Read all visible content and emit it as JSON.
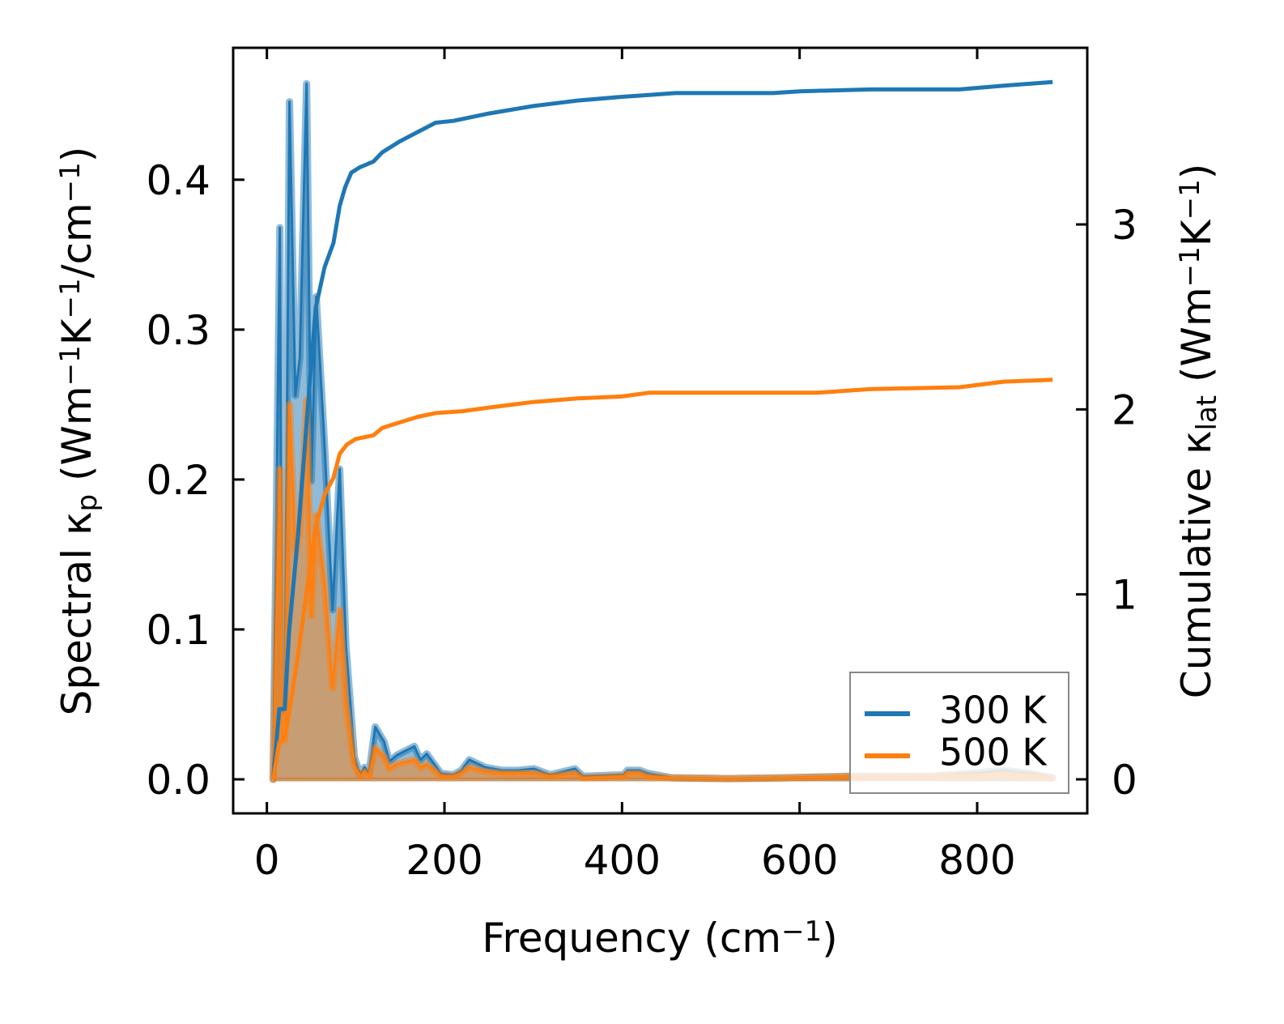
{
  "chart_data": {
    "type": "line",
    "title": "",
    "xlabel": [
      {
        "t": "Frequency (cm"
      },
      {
        "t": "−1",
        "sup": true
      },
      {
        "t": ")"
      }
    ],
    "ylabel_left": [
      {
        "t": "Spectral κ"
      },
      {
        "t": "p",
        "sub": true
      },
      {
        "t": " (Wm"
      },
      {
        "t": "−1",
        "sup": true
      },
      {
        "t": "K"
      },
      {
        "t": "−1",
        "sup": true
      },
      {
        "t": "/cm"
      },
      {
        "t": "−1",
        "sup": true
      },
      {
        "t": ")"
      }
    ],
    "ylabel_right": [
      {
        "t": "Cumulative κ"
      },
      {
        "t": "lat",
        "sub": true
      },
      {
        "t": " (Wm"
      },
      {
        "t": "−1",
        "sup": true
      },
      {
        "t": "K"
      },
      {
        "t": "−1",
        "sup": true
      },
      {
        "t": ")"
      }
    ],
    "xlim": [
      -38,
      924
    ],
    "ylim_left": [
      -0.0227,
      0.488
    ],
    "ylim_right": [
      -0.184,
      3.955
    ],
    "xticks": [
      0,
      200,
      400,
      600,
      800
    ],
    "xtick_labels": [
      "0",
      "200",
      "400",
      "600",
      "800"
    ],
    "yticks_left": [
      0.0,
      0.1,
      0.2,
      0.3,
      0.4
    ],
    "ytick_labels_left": [
      "0.0",
      "0.1",
      "0.2",
      "0.3",
      "0.4"
    ],
    "yticks_right": [
      0,
      1,
      2,
      3
    ],
    "ytick_labels_right": [
      "0",
      "1",
      "2",
      "3"
    ],
    "grid": false,
    "legend": {
      "placement": "lower-right",
      "entries": [
        "300 K",
        "500 K"
      ]
    },
    "colors": {
      "300 K": "#1f77b4",
      "500 K": "#ff7f0e"
    },
    "series": [
      {
        "name": "300 K",
        "spectral": {
          "x": [
            7,
            14.6,
            17,
            20,
            25.5,
            32,
            37,
            44.7,
            50,
            55.6,
            65,
            74,
            82,
            89,
            98.5,
            105,
            110,
            115,
            122,
            132,
            138,
            146,
            166,
            173,
            180,
            196,
            210,
            219,
            228,
            246,
            265,
            283,
            301,
            319,
            347,
            356,
            402,
            406,
            420,
            429,
            456,
            520,
            584,
            657,
            748,
            794,
            830,
            858,
            885
          ],
          "y": [
            0,
            0.368,
            0.045,
            0.045,
            0.452,
            0.256,
            0.281,
            0.464,
            0.199,
            0.322,
            0.222,
            0.113,
            0.207,
            0.089,
            0.015,
            0.003,
            0.008,
            0.004,
            0.035,
            0.025,
            0.012,
            0.016,
            0.022,
            0.013,
            0.017,
            0.004,
            0.003,
            0.006,
            0.013,
            0.008,
            0.006,
            0.006,
            0.007,
            0.003,
            0.007,
            0.002,
            0.003,
            0.006,
            0.006,
            0.004,
            0.001,
            0.0005,
            0.001,
            0.002,
            0.002,
            0.004,
            0.006,
            0.004,
            0.001
          ]
        },
        "cumulative": {
          "x": [
            7,
            14,
            20,
            25,
            35,
            45,
            55,
            65,
            75,
            82,
            88,
            95,
            105,
            120,
            130,
            150,
            170,
            190,
            210,
            220,
            250,
            300,
            350,
            400,
            430,
            460,
            570,
            600,
            680,
            780,
            830,
            885
          ],
          "y": [
            0,
            0.38,
            0.38,
            0.8,
            1.32,
            1.94,
            2.55,
            2.77,
            2.9,
            3.1,
            3.2,
            3.28,
            3.31,
            3.34,
            3.39,
            3.45,
            3.5,
            3.55,
            3.56,
            3.57,
            3.6,
            3.64,
            3.67,
            3.69,
            3.7,
            3.71,
            3.71,
            3.72,
            3.73,
            3.73,
            3.75,
            3.77
          ]
        }
      },
      {
        "name": "500 K",
        "spectral": {
          "x": [
            7,
            14.6,
            17,
            20,
            25.5,
            32,
            37,
            44.7,
            50,
            55.6,
            65,
            74,
            82,
            89,
            98.5,
            105,
            110,
            115,
            122,
            132,
            138,
            146,
            166,
            173,
            180,
            196,
            210,
            219,
            228,
            246,
            265,
            283,
            301,
            319,
            347,
            356,
            402,
            406,
            420,
            429,
            456,
            520,
            584,
            657,
            748,
            794,
            830,
            858,
            885
          ],
          "y": [
            0,
            0.207,
            0.026,
            0.026,
            0.25,
            0.15,
            0.165,
            0.253,
            0.109,
            0.176,
            0.13,
            0.061,
            0.113,
            0.05,
            0.009,
            0.002,
            0.005,
            0.002,
            0.021,
            0.015,
            0.007,
            0.01,
            0.013,
            0.008,
            0.01,
            0.002,
            0.002,
            0.004,
            0.008,
            0.005,
            0.004,
            0.004,
            0.004,
            0.002,
            0.004,
            0.001,
            0.002,
            0.004,
            0.004,
            0.002,
            0.001,
            0.0005,
            0.001,
            0.002,
            0.002,
            0.003,
            0.004,
            0.003,
            0.001
          ]
        },
        "cumulative": {
          "x": [
            7,
            14,
            20,
            25,
            35,
            45,
            55,
            65,
            75,
            82,
            90,
            100,
            120,
            130,
            150,
            170,
            190,
            220,
            250,
            300,
            350,
            400,
            430,
            460,
            570,
            620,
            680,
            780,
            830,
            885
          ],
          "y": [
            0,
            0.2,
            0.22,
            0.36,
            0.67,
            1.02,
            1.37,
            1.54,
            1.63,
            1.76,
            1.81,
            1.84,
            1.86,
            1.9,
            1.93,
            1.96,
            1.98,
            1.99,
            2.01,
            2.04,
            2.06,
            2.07,
            2.09,
            2.09,
            2.09,
            2.09,
            2.11,
            2.12,
            2.15,
            2.16
          ]
        }
      }
    ]
  }
}
